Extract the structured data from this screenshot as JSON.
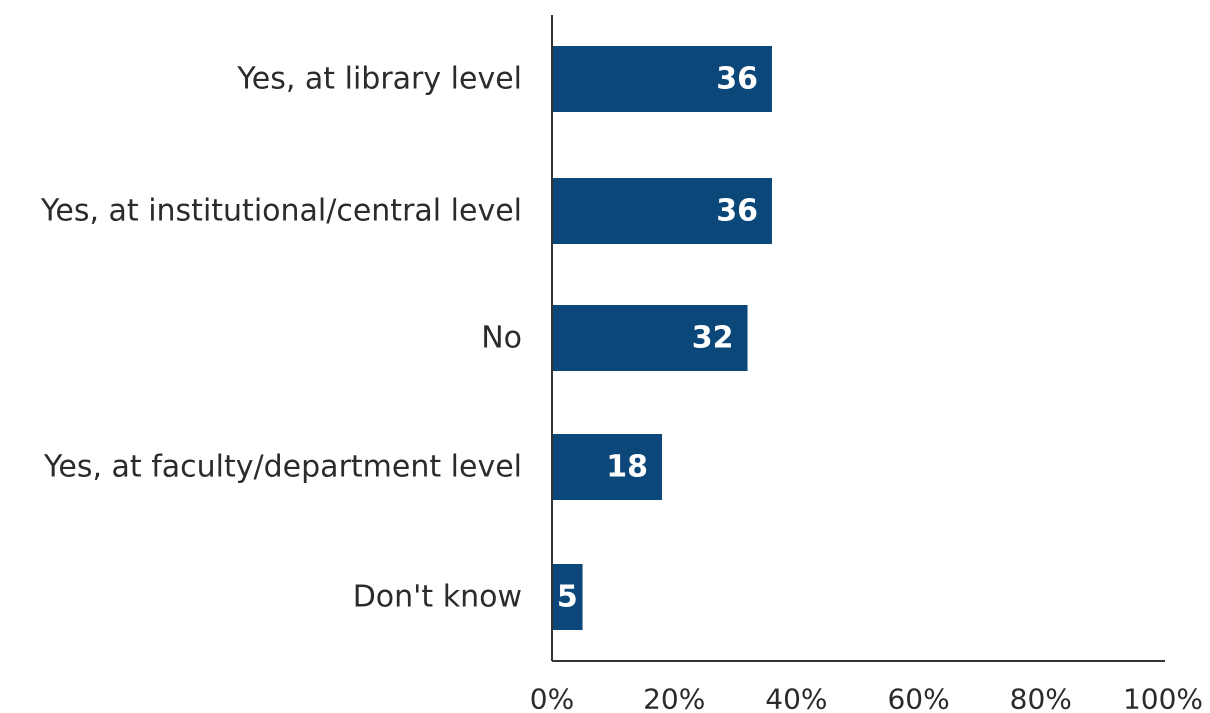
{
  "chart_data": {
    "type": "bar",
    "orientation": "horizontal",
    "title": "",
    "xlabel": "",
    "ylabel": "",
    "categories": [
      "Yes, at library level",
      "Yes, at institutional/central level",
      "No",
      "Yes, at faculty/department level",
      "Don't know"
    ],
    "values": [
      36,
      36,
      32,
      18,
      5
    ],
    "value_labels": [
      "36",
      "36",
      "32",
      "18",
      "5"
    ],
    "xlim": [
      0,
      100
    ],
    "x_ticks": [
      0,
      20,
      40,
      60,
      80,
      100
    ],
    "x_tick_labels": [
      "0%",
      "20%",
      "40%",
      "60%",
      "80%",
      "100%"
    ],
    "bar_color": "#0b4779",
    "grid": false,
    "legend": "none"
  }
}
